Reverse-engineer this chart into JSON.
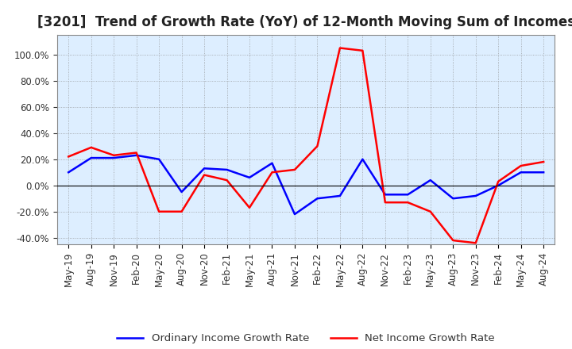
{
  "title": "[3201]  Trend of Growth Rate (YoY) of 12-Month Moving Sum of Incomes",
  "x_labels": [
    "May-19",
    "Aug-19",
    "Nov-19",
    "Feb-20",
    "May-20",
    "Aug-20",
    "Nov-20",
    "Feb-21",
    "May-21",
    "Aug-21",
    "Nov-21",
    "Feb-22",
    "May-22",
    "Aug-22",
    "Nov-22",
    "Feb-23",
    "May-23",
    "Aug-23",
    "Nov-23",
    "Feb-24",
    "May-24",
    "Aug-24"
  ],
  "ordinary_income": [
    10,
    21,
    21,
    23,
    20,
    -5,
    13,
    12,
    6,
    17,
    -22,
    -10,
    -8,
    20,
    -7,
    -7,
    4,
    -10,
    -8,
    0,
    10,
    10
  ],
  "net_income": [
    22,
    29,
    23,
    25,
    -20,
    -20,
    8,
    4,
    -17,
    10,
    12,
    30,
    105,
    103,
    -13,
    -13,
    -20,
    -42,
    -44,
    3,
    15,
    18
  ],
  "ylim": [
    -45,
    115
  ],
  "yticks": [
    -40,
    -20,
    0,
    20,
    40,
    60,
    80,
    100
  ],
  "ordinary_color": "#0000FF",
  "net_color": "#FF0000",
  "bg_color": "#FFFFFF",
  "plot_bg_color": "#DDEEFF",
  "grid_color": "#AAAAAA",
  "legend_ordinary": "Ordinary Income Growth Rate",
  "legend_net": "Net Income Growth Rate",
  "title_fontsize": 12,
  "axis_fontsize": 8.5,
  "legend_fontsize": 9.5
}
